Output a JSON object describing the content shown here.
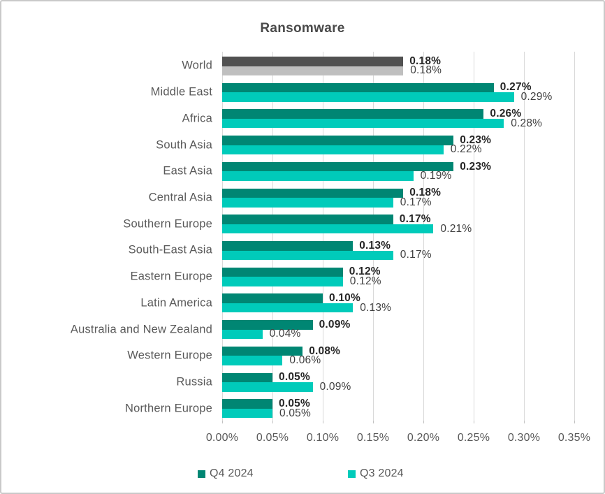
{
  "chart_data": {
    "type": "bar",
    "orientation": "horizontal",
    "title": "Ransomware",
    "categories": [
      "World",
      "Middle East",
      "Africa",
      "South Asia",
      "East Asia",
      "Central Asia",
      "Southern Europe",
      "South-East Asia",
      "Eastern Europe",
      "Latin America",
      "Australia and New Zealand",
      "Western Europe",
      "Russia",
      "Northern Europe"
    ],
    "series": [
      {
        "name": "Q4 2024",
        "color": "#008673",
        "world_bar_color": "#515151",
        "values": [
          0.18,
          0.27,
          0.26,
          0.23,
          0.23,
          0.18,
          0.17,
          0.13,
          0.12,
          0.1,
          0.09,
          0.08,
          0.05,
          0.05
        ],
        "labels": [
          "0.18%",
          "0.27%",
          "0.26%",
          "0.23%",
          "0.23%",
          "0.18%",
          "0.17%",
          "0.13%",
          "0.12%",
          "0.10%",
          "0.09%",
          "0.08%",
          "0.05%",
          "0.05%"
        ],
        "label_bold": true
      },
      {
        "name": "Q3 2024",
        "color": "#00cbba",
        "world_bar_color": "#bfbfbf",
        "values": [
          0.18,
          0.29,
          0.28,
          0.22,
          0.19,
          0.17,
          0.21,
          0.17,
          0.12,
          0.13,
          0.04,
          0.06,
          0.09,
          0.05
        ],
        "labels": [
          "0.18%",
          "0.29%",
          "0.28%",
          "0.22%",
          "0.19%",
          "0.17%",
          "0.21%",
          "0.17%",
          "0.12%",
          "0.13%",
          "0.04%",
          "0.06%",
          "0.09%",
          "0.05%"
        ],
        "label_bold": false
      }
    ],
    "x_axis": {
      "min": 0,
      "max": 0.35,
      "tick_step": 0.05,
      "tick_labels": [
        "0.00%",
        "0.05%",
        "0.10%",
        "0.15%",
        "0.20%",
        "0.25%",
        "0.30%",
        "0.35%"
      ],
      "gridlines": true
    },
    "legend": {
      "position": "bottom",
      "items": [
        {
          "label": "Q4 2024",
          "color": "#008673"
        },
        {
          "label": "Q3 2024",
          "color": "#00cbba"
        }
      ]
    }
  },
  "colors": {
    "gridline": "#d9d9d9",
    "axis_text": "#595959",
    "category_text": "#595959",
    "title_text": "#4a4a4a",
    "value_label_bold": "#262626",
    "value_label_regular": "#404040",
    "frame_border": "#c9c9c9"
  }
}
